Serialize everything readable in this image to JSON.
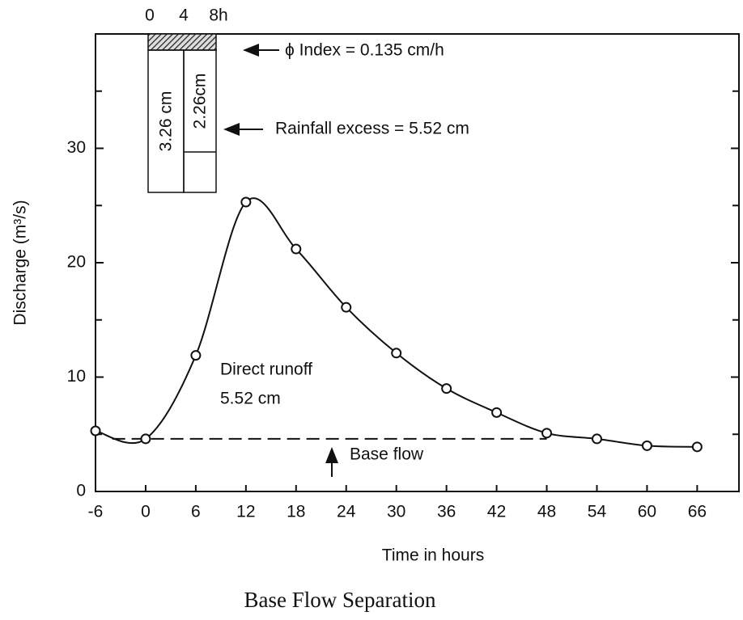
{
  "chart_data": {
    "type": "line",
    "caption": "Base Flow Separation",
    "xlabel": "Time in hours",
    "ylabel": "Discharge (m³/s)",
    "x": [
      -6,
      0,
      6,
      12,
      18,
      24,
      30,
      36,
      42,
      48,
      54,
      60,
      66
    ],
    "series": [
      {
        "name": "Discharge",
        "color": "#111111",
        "values": [
          5.3,
          4.6,
          11.9,
          25.3,
          21.2,
          16.1,
          12.1,
          9.0,
          6.9,
          5.1,
          4.6,
          4.0,
          3.9
        ]
      }
    ],
    "base_flow": {
      "label": "Base flow",
      "value": 4.6,
      "x": [
        -4,
        48
      ]
    },
    "xlim": [
      -6,
      71
    ],
    "ylim": [
      0,
      40
    ],
    "xticks": [
      -6,
      0,
      6,
      12,
      18,
      24,
      30,
      36,
      42,
      48,
      54,
      60,
      66
    ],
    "yticks": [
      0,
      10,
      20,
      30
    ],
    "yminor": [
      5,
      15,
      25,
      35
    ],
    "annotations": {
      "runoff_1": "Direct runoff",
      "runoff_2": "5.52 cm",
      "phi": "ϕ Index = 0.135 cm/h",
      "excess": "Rainfall excess = 5.52 cm",
      "hyeto_t0": "0",
      "hyeto_t4": "4",
      "hyeto_t8": "8h",
      "rain_1": "3.26 cm",
      "rain_2": "2.26cm"
    }
  }
}
